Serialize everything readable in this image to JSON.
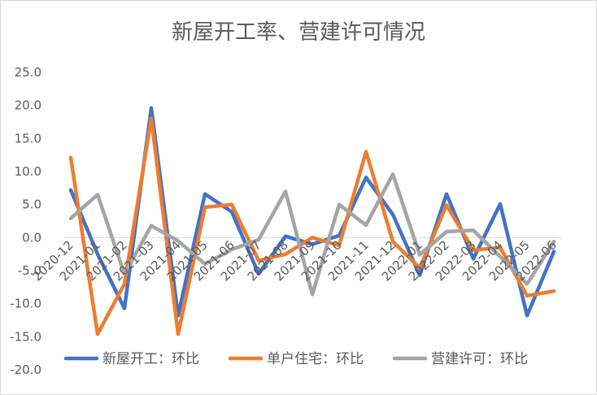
{
  "chart_data": {
    "type": "line",
    "title": "新屋开工率、营建许可情况",
    "xlabel": "",
    "ylabel": "",
    "categories": [
      "2020-12",
      "2021-01",
      "2021-02",
      "2021-03",
      "2021-04",
      "2021-05",
      "2021-06",
      "2021-07",
      "2021-08",
      "2021-09",
      "2021-10",
      "2021-11",
      "2021-12",
      "2022-01",
      "2022-02",
      "2022-03",
      "2022-04",
      "2022-05",
      "2022-06"
    ],
    "ylim": [
      -20,
      25
    ],
    "yticks": [
      "25.0",
      "20.0",
      "15.0",
      "10.0",
      "5.0",
      "0.0",
      "-5.0",
      "-10.0",
      "-15.0",
      "-20.0"
    ],
    "ytick_values": [
      25,
      20,
      15,
      10,
      5,
      0,
      -5,
      -10,
      -15,
      -20
    ],
    "grid": false,
    "legend_position": "bottom",
    "series": [
      {
        "name": "新屋开工：环比",
        "color": "#4472C4",
        "values": [
          7.2,
          -2.5,
          -10.7,
          19.6,
          -11.8,
          6.6,
          3.9,
          -5.5,
          0.2,
          -1.0,
          0.3,
          9.1,
          3.5,
          -5.7,
          6.6,
          -3.2,
          5.1,
          -11.8,
          -2.1
        ]
      },
      {
        "name": "单户住宅：环比",
        "color": "#ED7D31",
        "values": [
          12.1,
          -14.6,
          -7.0,
          18.0,
          -14.6,
          4.6,
          5.0,
          -3.5,
          -2.5,
          0.0,
          -1.2,
          13.0,
          -0.6,
          -4.6,
          4.9,
          -1.9,
          -1.5,
          -8.8,
          -8.1
        ]
      },
      {
        "name": "营建许可：环比",
        "color": "#A5A5A5",
        "values": [
          2.9,
          6.5,
          -5.5,
          1.8,
          -0.5,
          -4.0,
          -1.8,
          -0.3,
          7.0,
          -8.6,
          5.0,
          1.9,
          9.6,
          -2.6,
          0.9,
          1.1,
          -2.9,
          -7.0,
          -0.6
        ]
      }
    ]
  }
}
